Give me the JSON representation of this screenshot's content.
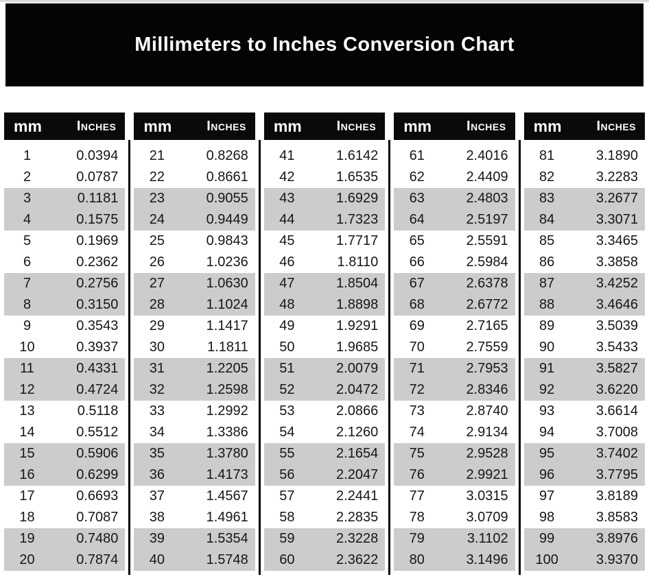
{
  "banner": {
    "title": "Millimeters to Inches Conversion Chart"
  },
  "column_headers": {
    "mm": "mm",
    "inches": "Inches"
  },
  "colors": {
    "banner_bg": "#000000",
    "header_bg": "#000000",
    "header_text": "#ffffff",
    "row_stripe": "#cccccc",
    "text": "#161616"
  },
  "tables": [
    {
      "rows": [
        [
          "1",
          "0.0394"
        ],
        [
          "2",
          "0.0787"
        ],
        [
          "3",
          "0.1181"
        ],
        [
          "4",
          "0.1575"
        ],
        [
          "5",
          "0.1969"
        ],
        [
          "6",
          "0.2362"
        ],
        [
          "7",
          "0.2756"
        ],
        [
          "8",
          "0.3150"
        ],
        [
          "9",
          "0.3543"
        ],
        [
          "10",
          "0.3937"
        ],
        [
          "11",
          "0.4331"
        ],
        [
          "12",
          "0.4724"
        ],
        [
          "13",
          "0.5118"
        ],
        [
          "14",
          "0.5512"
        ],
        [
          "15",
          "0.5906"
        ],
        [
          "16",
          "0.6299"
        ],
        [
          "17",
          "0.6693"
        ],
        [
          "18",
          "0.7087"
        ],
        [
          "19",
          "0.7480"
        ],
        [
          "20",
          "0.7874"
        ]
      ]
    },
    {
      "rows": [
        [
          "21",
          "0.8268"
        ],
        [
          "22",
          "0.8661"
        ],
        [
          "23",
          "0.9055"
        ],
        [
          "24",
          "0.9449"
        ],
        [
          "25",
          "0.9843"
        ],
        [
          "26",
          "1.0236"
        ],
        [
          "27",
          "1.0630"
        ],
        [
          "28",
          "1.1024"
        ],
        [
          "29",
          "1.1417"
        ],
        [
          "30",
          "1.1811"
        ],
        [
          "31",
          "1.2205"
        ],
        [
          "32",
          "1.2598"
        ],
        [
          "33",
          "1.2992"
        ],
        [
          "34",
          "1.3386"
        ],
        [
          "35",
          "1.3780"
        ],
        [
          "36",
          "1.4173"
        ],
        [
          "37",
          "1.4567"
        ],
        [
          "38",
          "1.4961"
        ],
        [
          "39",
          "1.5354"
        ],
        [
          "40",
          "1.5748"
        ]
      ]
    },
    {
      "rows": [
        [
          "41",
          "1.6142"
        ],
        [
          "42",
          "1.6535"
        ],
        [
          "43",
          "1.6929"
        ],
        [
          "44",
          "1.7323"
        ],
        [
          "45",
          "1.7717"
        ],
        [
          "46",
          "1.8110"
        ],
        [
          "47",
          "1.8504"
        ],
        [
          "48",
          "1.8898"
        ],
        [
          "49",
          "1.9291"
        ],
        [
          "50",
          "1.9685"
        ],
        [
          "51",
          "2.0079"
        ],
        [
          "52",
          "2.0472"
        ],
        [
          "53",
          "2.0866"
        ],
        [
          "54",
          "2.1260"
        ],
        [
          "55",
          "2.1654"
        ],
        [
          "56",
          "2.2047"
        ],
        [
          "57",
          "2.2441"
        ],
        [
          "58",
          "2.2835"
        ],
        [
          "59",
          "2.3228"
        ],
        [
          "60",
          "2.3622"
        ]
      ]
    },
    {
      "rows": [
        [
          "61",
          "2.4016"
        ],
        [
          "62",
          "2.4409"
        ],
        [
          "63",
          "2.4803"
        ],
        [
          "64",
          "2.5197"
        ],
        [
          "65",
          "2.5591"
        ],
        [
          "66",
          "2.5984"
        ],
        [
          "67",
          "2.6378"
        ],
        [
          "68",
          "2.6772"
        ],
        [
          "69",
          "2.7165"
        ],
        [
          "70",
          "2.7559"
        ],
        [
          "71",
          "2.7953"
        ],
        [
          "72",
          "2.8346"
        ],
        [
          "73",
          "2.8740"
        ],
        [
          "74",
          "2.9134"
        ],
        [
          "75",
          "2.9528"
        ],
        [
          "76",
          "2.9921"
        ],
        [
          "77",
          "3.0315"
        ],
        [
          "78",
          "3.0709"
        ],
        [
          "79",
          "3.1102"
        ],
        [
          "80",
          "3.1496"
        ]
      ]
    },
    {
      "rows": [
        [
          "81",
          "3.1890"
        ],
        [
          "82",
          "3.2283"
        ],
        [
          "83",
          "3.2677"
        ],
        [
          "84",
          "3.3071"
        ],
        [
          "85",
          "3.3465"
        ],
        [
          "86",
          "3.3858"
        ],
        [
          "87",
          "3.4252"
        ],
        [
          "88",
          "3.4646"
        ],
        [
          "89",
          "3.5039"
        ],
        [
          "90",
          "3.5433"
        ],
        [
          "91",
          "3.5827"
        ],
        [
          "92",
          "3.6220"
        ],
        [
          "93",
          "3.6614"
        ],
        [
          "94",
          "3.7008"
        ],
        [
          "95",
          "3.7402"
        ],
        [
          "96",
          "3.7795"
        ],
        [
          "97",
          "3.8189"
        ],
        [
          "98",
          "3.8583"
        ],
        [
          "99",
          "3.8976"
        ],
        [
          "100",
          "3.9370"
        ]
      ]
    }
  ]
}
